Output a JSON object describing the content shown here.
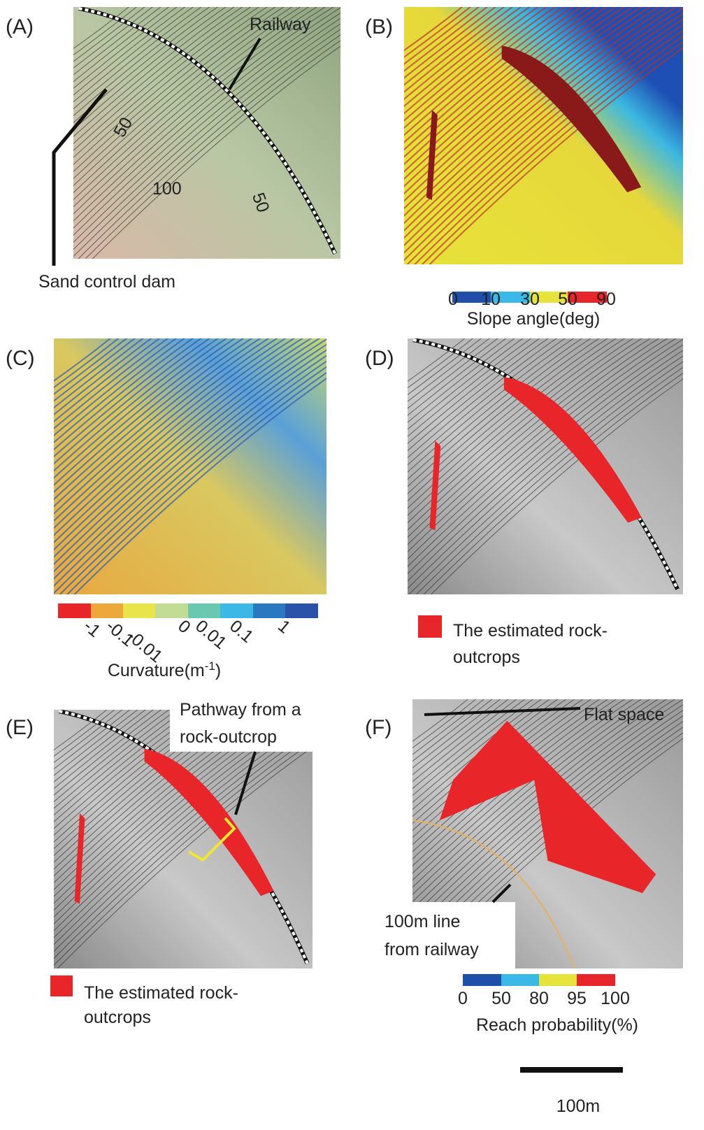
{
  "panels": [
    {
      "label": "(A)",
      "annotations": [
        "Railway",
        "50",
        "100",
        "50",
        "Sand control dam"
      ]
    },
    {
      "label": "(B)",
      "legend": {
        "ticks": [
          "0",
          "10",
          "30",
          "50",
          "90"
        ],
        "title": "Slope angle(deg)"
      }
    },
    {
      "label": "(C)",
      "legend": {
        "ticks": [
          "-1",
          "-0.1",
          "-0.01",
          "0",
          "0.01",
          "0.1",
          "1"
        ],
        "title": {
          "text": "Curvature(m",
          "sup": "-1",
          "close": ")"
        }
      }
    },
    {
      "label": "(D)",
      "legend": {
        "lines": [
          "The estimated rock-",
          "outcrops"
        ]
      }
    },
    {
      "label": "(E)",
      "annotations": [
        "Pathway from a",
        "rock-outcrop"
      ],
      "legend": {
        "lines": [
          "The estimated rock-",
          "outcrops"
        ]
      }
    },
    {
      "label": "(F)",
      "annotations": [
        "Flat space",
        "100m line",
        "from railway"
      ],
      "legend": {
        "ticks": [
          "0",
          "50",
          "80",
          "95",
          "100"
        ],
        "title": "Reach probability(%)"
      }
    }
  ],
  "scale_bar": "100m"
}
